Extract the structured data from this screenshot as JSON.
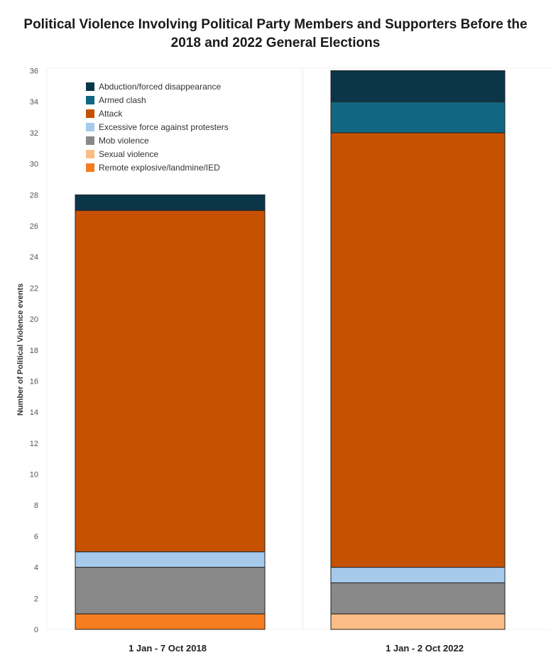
{
  "chart_data": {
    "type": "bar",
    "stacked": true,
    "title_line1": "Political Violence Involving Political Party Members and Supporters Before the",
    "title_line2": "2018 and 2022 General Elections",
    "xlabel": "",
    "ylabel": "Number of Political Violence events",
    "ylim": [
      0,
      36
    ],
    "yticks": [
      0,
      2,
      4,
      6,
      8,
      10,
      12,
      14,
      16,
      18,
      20,
      22,
      24,
      26,
      28,
      30,
      32,
      34,
      36
    ],
    "grid": false,
    "legend_position": "top-left",
    "categories": [
      "1 Jan - 7 Oct 2018",
      "1 Jan - 2 Oct 2022"
    ],
    "series": [
      {
        "name": "Remote explosive/landmine/IED",
        "color": "#f57c1f",
        "values": [
          1,
          0
        ]
      },
      {
        "name": "Sexual violence",
        "color": "#fbbd85",
        "values": [
          0,
          1
        ]
      },
      {
        "name": "Mob violence",
        "color": "#898989",
        "values": [
          3,
          2
        ]
      },
      {
        "name": "Excessive force against protesters",
        "color": "#a6caec",
        "values": [
          1,
          1
        ]
      },
      {
        "name": "Attack",
        "color": "#c65100",
        "values": [
          22,
          28
        ]
      },
      {
        "name": "Armed clash",
        "color": "#116782",
        "values": [
          0,
          2
        ]
      },
      {
        "name": "Abduction/forced disappearance",
        "color": "#0b3649",
        "values": [
          1,
          2
        ]
      }
    ],
    "legend_order": [
      "Abduction/forced disappearance",
      "Armed clash",
      "Attack",
      "Excessive force against protesters",
      "Mob violence",
      "Sexual violence",
      "Remote explosive/landmine/IED"
    ]
  }
}
